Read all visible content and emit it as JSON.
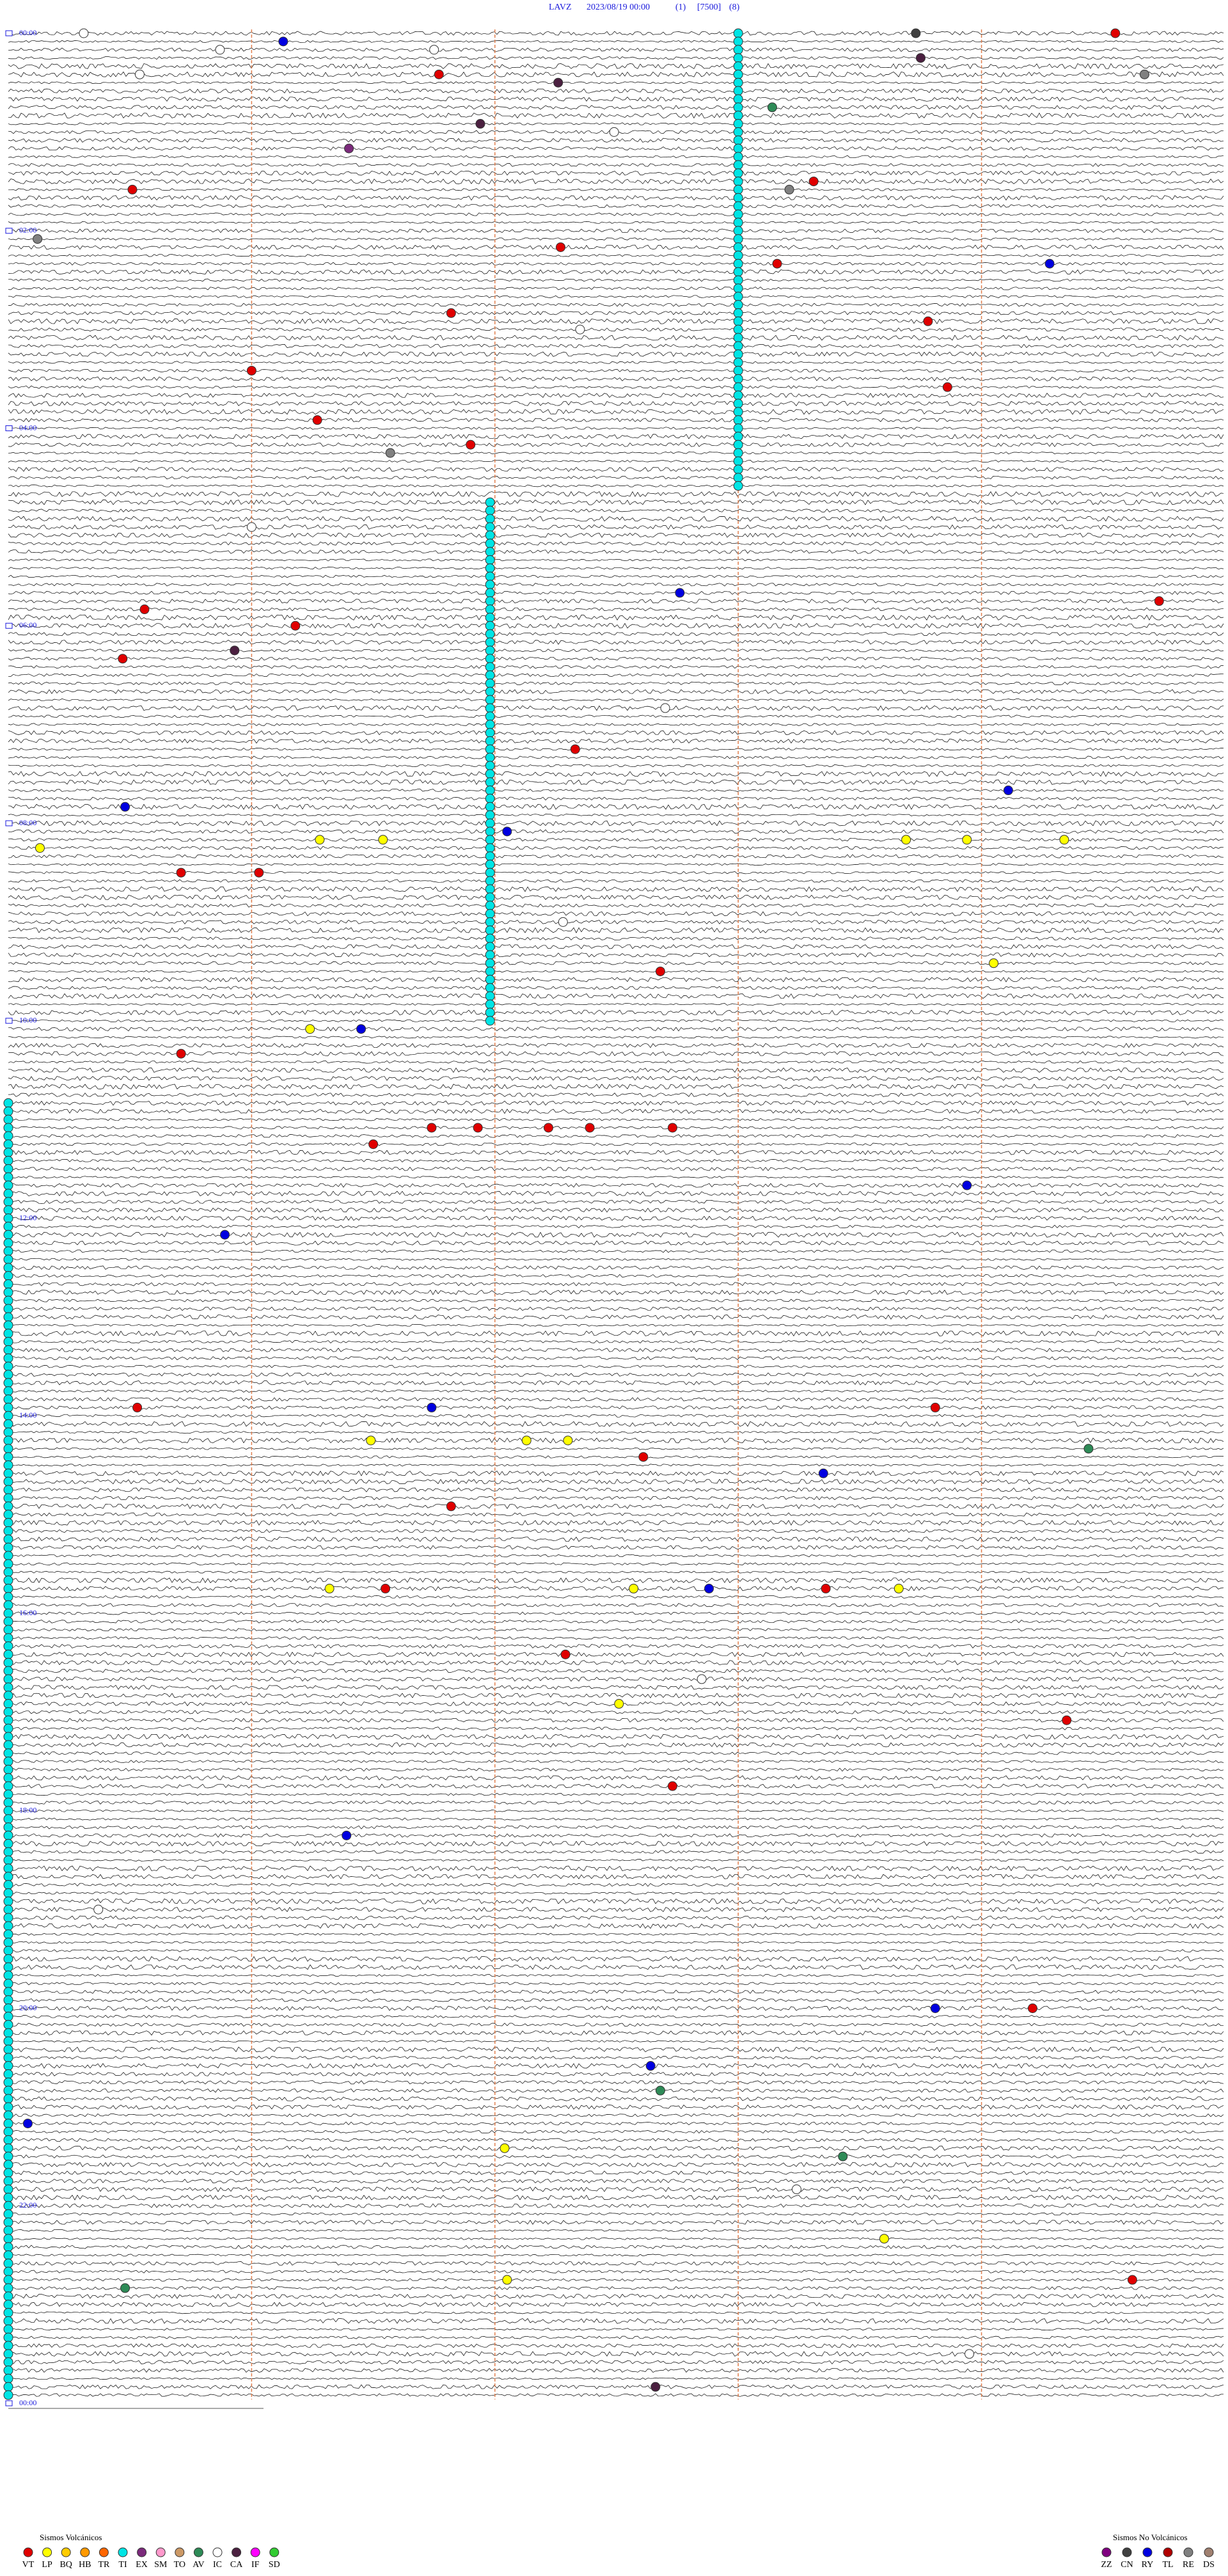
{
  "chart_data": {
    "type": "helicorder",
    "header": {
      "station": "LAVZ",
      "datetime": "2023/08/19 00:00",
      "channel": "(1)",
      "scale": "[7500]",
      "filter": "(8)"
    },
    "xlim": [
      0,
      5
    ],
    "ylim": [
      0,
      288
    ],
    "grid": true,
    "yticks": [
      {
        "value": 0,
        "label": "00:00"
      },
      {
        "value": 24,
        "label": "02:00"
      },
      {
        "value": 48,
        "label": "04:00"
      },
      {
        "value": 72,
        "label": "06:00"
      },
      {
        "value": 96,
        "label": "08:00"
      },
      {
        "value": 120,
        "label": "10:00"
      },
      {
        "value": 144,
        "label": "12:00"
      },
      {
        "value": 168,
        "label": "14:00"
      },
      {
        "value": 192,
        "label": "16:00"
      },
      {
        "value": 216,
        "label": "18:00"
      },
      {
        "value": 240,
        "label": "20:00"
      },
      {
        "value": 264,
        "label": "22:00"
      },
      {
        "value": 288,
        "label": "00:00"
      }
    ],
    "legend": {
      "volcanic": {
        "title": "Sismos Volcánicos",
        "items": [
          {
            "code": "VT",
            "color": "#e00000"
          },
          {
            "code": "LP",
            "color": "#ffff00"
          },
          {
            "code": "BQ",
            "color": "#ffcc00"
          },
          {
            "code": "HB",
            "color": "#ff9900"
          },
          {
            "code": "TR",
            "color": "#ff6600"
          },
          {
            "code": "TI",
            "color": "#00e5e5"
          },
          {
            "code": "EX",
            "color": "#7b2a7b"
          },
          {
            "code": "SM",
            "color": "#ff99cc"
          },
          {
            "code": "TO",
            "color": "#cc9966"
          },
          {
            "code": "AV",
            "color": "#2e8b57"
          },
          {
            "code": "IC",
            "color": "#ffffff"
          },
          {
            "code": "CA",
            "color": "#4b2040"
          },
          {
            "code": "IF",
            "color": "#ff00ff"
          },
          {
            "code": "SD",
            "color": "#33cc33"
          }
        ]
      },
      "non_volcanic": {
        "title": "Sismos No Volcánicos",
        "items": [
          {
            "code": "ZZ",
            "color": "#800080"
          },
          {
            "code": "CN",
            "color": "#404040"
          },
          {
            "code": "RY",
            "color": "#0000e0"
          },
          {
            "code": "TL",
            "color": "#b00000"
          },
          {
            "code": "RE",
            "color": "#808080"
          },
          {
            "code": "DS",
            "color": "#a08070"
          }
        ]
      }
    },
    "events": [
      {
        "type": "IC",
        "row": 0,
        "minute": 0.31
      },
      {
        "type": "RY",
        "row": 1,
        "minute": 1.13
      },
      {
        "type": "CN",
        "row": 0,
        "minute": 3.73
      },
      {
        "type": "VT",
        "row": 0,
        "minute": 4.55
      },
      {
        "type": "IC",
        "row": 2,
        "minute": 0.87
      },
      {
        "type": "IC",
        "row": 2,
        "minute": 1.75
      },
      {
        "type": "CA",
        "row": 3,
        "minute": 3.75
      },
      {
        "type": "VT",
        "row": 5,
        "minute": 1.77
      },
      {
        "type": "CA",
        "row": 6,
        "minute": 2.26
      },
      {
        "type": "RE",
        "row": 5,
        "minute": 4.67
      },
      {
        "type": "AV",
        "row": 9,
        "minute": 3.14
      },
      {
        "type": "CA",
        "row": 11,
        "minute": 1.94
      },
      {
        "type": "IC",
        "row": 12,
        "minute": 2.49
      },
      {
        "type": "EX",
        "row": 14,
        "minute": 1.4
      },
      {
        "type": "VT",
        "row": 19,
        "minute": 0.51
      },
      {
        "type": "VT",
        "row": 18,
        "minute": 3.31
      },
      {
        "type": "RE",
        "row": 19,
        "minute": 3.21
      },
      {
        "type": "RE",
        "row": 25,
        "minute": 0.12
      },
      {
        "type": "VT",
        "row": 26,
        "minute": 2.27
      },
      {
        "type": "VT",
        "row": 28,
        "minute": 3.16
      },
      {
        "type": "RY",
        "row": 28,
        "minute": 4.28
      },
      {
        "type": "VT",
        "row": 34,
        "minute": 1.82
      },
      {
        "type": "VT",
        "row": 35,
        "minute": 3.78
      },
      {
        "type": "VT",
        "row": 43,
        "minute": 3.86
      },
      {
        "type": "VT",
        "row": 41,
        "minute": 1.0
      },
      {
        "type": "VT",
        "row": 47,
        "minute": 1.27
      },
      {
        "type": "VT",
        "row": 50,
        "minute": 1.9
      },
      {
        "type": "RE",
        "row": 51,
        "minute": 1.57
      },
      {
        "type": "RY",
        "row": 68,
        "minute": 2.76
      },
      {
        "type": "VT",
        "row": 69,
        "minute": 4.73
      },
      {
        "type": "VT",
        "row": 70,
        "minute": 0.56
      },
      {
        "type": "VT",
        "row": 72,
        "minute": 1.18
      },
      {
        "type": "CA",
        "row": 75,
        "minute": 0.93
      },
      {
        "type": "VT",
        "row": 76,
        "minute": 0.47
      },
      {
        "type": "VT",
        "row": 87,
        "minute": 2.33
      },
      {
        "type": "RY",
        "row": 92,
        "minute": 4.11
      },
      {
        "type": "RY",
        "row": 94,
        "minute": 0.48
      },
      {
        "type": "RY",
        "row": 97,
        "minute": 2.05
      },
      {
        "type": "LP",
        "row": 99,
        "minute": 0.13
      },
      {
        "type": "LP",
        "row": 98,
        "minute": 1.28
      },
      {
        "type": "LP",
        "row": 98,
        "minute": 1.54
      },
      {
        "type": "LP",
        "row": 98,
        "minute": 3.69
      },
      {
        "type": "LP",
        "row": 98,
        "minute": 3.94
      },
      {
        "type": "LP",
        "row": 98,
        "minute": 4.34
      },
      {
        "type": "VT",
        "row": 102,
        "minute": 0.71
      },
      {
        "type": "VT",
        "row": 102,
        "minute": 1.03
      },
      {
        "type": "VT",
        "row": 114,
        "minute": 2.68
      },
      {
        "type": "LP",
        "row": 113,
        "minute": 4.05
      },
      {
        "type": "LP",
        "row": 121,
        "minute": 1.24
      },
      {
        "type": "RY",
        "row": 121,
        "minute": 1.45
      },
      {
        "type": "VT",
        "row": 124,
        "minute": 0.71
      },
      {
        "type": "VT",
        "row": 133,
        "minute": 1.74
      },
      {
        "type": "VT",
        "row": 133,
        "minute": 1.93
      },
      {
        "type": "VT",
        "row": 133,
        "minute": 2.22
      },
      {
        "type": "VT",
        "row": 133,
        "minute": 2.39
      },
      {
        "type": "VT",
        "row": 133,
        "minute": 2.73
      },
      {
        "type": "VT",
        "row": 135,
        "minute": 1.5
      },
      {
        "type": "RY",
        "row": 146,
        "minute": 0.89
      },
      {
        "type": "RY",
        "row": 140,
        "minute": 3.94
      },
      {
        "type": "RY",
        "row": 167,
        "minute": 1.74
      },
      {
        "type": "VT",
        "row": 167,
        "minute": 0.53
      },
      {
        "type": "VT",
        "row": 167,
        "minute": 3.81
      },
      {
        "type": "LP",
        "row": 171,
        "minute": 1.49
      },
      {
        "type": "LP",
        "row": 171,
        "minute": 2.13
      },
      {
        "type": "LP",
        "row": 171,
        "minute": 2.3
      },
      {
        "type": "VT",
        "row": 173,
        "minute": 2.61
      },
      {
        "type": "RY",
        "row": 175,
        "minute": 3.35
      },
      {
        "type": "VT",
        "row": 179,
        "minute": 1.82
      },
      {
        "type": "VT",
        "row": 189,
        "minute": 1.55
      },
      {
        "type": "LP",
        "row": 189,
        "minute": 1.32
      },
      {
        "type": "LP",
        "row": 189,
        "minute": 2.57
      },
      {
        "type": "RY",
        "row": 189,
        "minute": 2.88
      },
      {
        "type": "VT",
        "row": 189,
        "minute": 3.36
      },
      {
        "type": "LP",
        "row": 189,
        "minute": 3.66
      },
      {
        "type": "VT",
        "row": 197,
        "minute": 2.29
      },
      {
        "type": "LP",
        "row": 203,
        "minute": 2.51
      },
      {
        "type": "VT",
        "row": 205,
        "minute": 4.35
      },
      {
        "type": "VT",
        "row": 213,
        "minute": 2.73
      },
      {
        "type": "RY",
        "row": 219,
        "minute": 1.39
      },
      {
        "type": "RY",
        "row": 240,
        "minute": 3.81
      },
      {
        "type": "VT",
        "row": 240,
        "minute": 4.21
      },
      {
        "type": "RY",
        "row": 247,
        "minute": 2.64
      },
      {
        "type": "RY",
        "row": 254,
        "minute": 0.08
      },
      {
        "type": "LP",
        "row": 257,
        "minute": 2.04
      },
      {
        "type": "LP",
        "row": 273,
        "minute": 2.05
      },
      {
        "type": "LP",
        "row": 268,
        "minute": 3.6
      },
      {
        "type": "CA",
        "row": 286,
        "minute": 2.66
      },
      {
        "type": "VT",
        "row": 273,
        "minute": 4.62
      },
      {
        "type": "IC",
        "row": 5,
        "minute": 0.54
      },
      {
        "type": "IC",
        "row": 36,
        "minute": 2.35
      },
      {
        "type": "IC",
        "row": 60,
        "minute": 1.0
      },
      {
        "type": "IC",
        "row": 82,
        "minute": 2.7
      },
      {
        "type": "IC",
        "row": 108,
        "minute": 2.28
      },
      {
        "type": "IC",
        "row": 200,
        "minute": 2.85
      },
      {
        "type": "IC",
        "row": 228,
        "minute": 0.37
      },
      {
        "type": "IC",
        "row": 262,
        "minute": 3.24
      },
      {
        "type": "IC",
        "row": 282,
        "minute": 3.95
      },
      {
        "type": "AV",
        "row": 172,
        "minute": 4.44
      },
      {
        "type": "AV",
        "row": 250,
        "minute": 2.68
      },
      {
        "type": "AV",
        "row": 274,
        "minute": 0.48
      },
      {
        "type": "AV",
        "row": 258,
        "minute": 3.43
      }
    ],
    "runs": [
      {
        "type": "TI",
        "minute": 3.0,
        "rows": [
          0,
          55
        ]
      },
      {
        "type": "TI",
        "minute": 1.98,
        "rows": [
          57,
          120
        ]
      },
      {
        "type": "TI",
        "minute": 0,
        "rows": [
          130,
          287
        ]
      }
    ]
  }
}
